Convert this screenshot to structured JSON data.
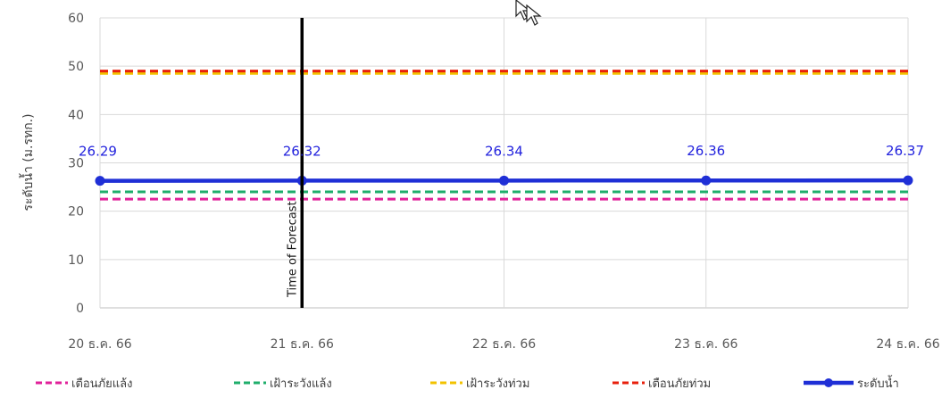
{
  "chart_data": {
    "type": "line",
    "ylabel": "ระดับน้ำ (ม.รทก.)",
    "ylim": [
      0,
      60
    ],
    "yticks": [
      0,
      10,
      20,
      30,
      40,
      50,
      60
    ],
    "categories": [
      "20 ธ.ค. 66",
      "21 ธ.ค. 66",
      "22 ธ.ค. 66",
      "23 ธ.ค. 66",
      "24 ธ.ค. 66"
    ],
    "grid": true,
    "legend_position": "bottom",
    "series": [
      {
        "name": "เตือนภัยแล้ง",
        "style": "dashed",
        "color": "#e0219a",
        "values": [
          22.5,
          22.5,
          22.5,
          22.5,
          22.5
        ]
      },
      {
        "name": "เฝ้าระวังแล้ง",
        "style": "dashed",
        "color": "#1fae6b",
        "values": [
          24.0,
          24.0,
          24.0,
          24.0,
          24.0
        ]
      },
      {
        "name": "เฝ้าระวังท่วม",
        "style": "dashed",
        "color": "#f2c200",
        "values": [
          48.5,
          48.5,
          48.5,
          48.5,
          48.5
        ]
      },
      {
        "name": "เตือนภัยท่วม",
        "style": "dashed",
        "color": "#e8200c",
        "values": [
          49.0,
          49.0,
          49.0,
          49.0,
          49.0
        ]
      },
      {
        "name": "ระดับน้ำ",
        "style": "solid-markers",
        "color": "#1f2fd6",
        "values": [
          26.29,
          26.32,
          26.34,
          26.36,
          26.37
        ],
        "data_labels": [
          "26.29",
          "26.32",
          "26.34",
          "26.36",
          "26.37"
        ]
      }
    ],
    "annotations": [
      {
        "text": "Time of Forecast",
        "type": "vertical-line",
        "at_category": "21 ธ.ค. 66"
      }
    ]
  }
}
